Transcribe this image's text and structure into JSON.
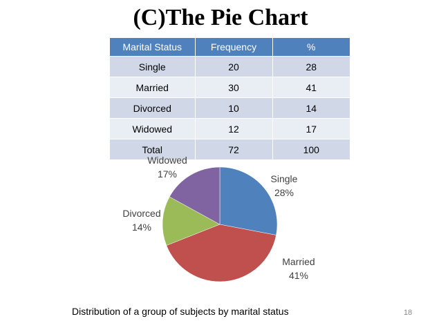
{
  "title": "(C)The Pie Chart",
  "table": {
    "headers": [
      "Marital Status",
      "Frequency",
      "%"
    ],
    "rows": [
      [
        "Single",
        "20",
        "28"
      ],
      [
        "Married",
        "30",
        "41"
      ],
      [
        "Divorced",
        "10",
        "14"
      ],
      [
        "Widowed",
        "12",
        "17"
      ],
      [
        "Total",
        "72",
        "100"
      ]
    ]
  },
  "chart_data": {
    "type": "pie",
    "title": "",
    "slices": [
      {
        "label": "Single",
        "value": 28,
        "percent_label": "28%",
        "color": "#4f81bd"
      },
      {
        "label": "Married",
        "value": 41,
        "percent_label": "41%",
        "color": "#c0504d"
      },
      {
        "label": "Divorced",
        "value": 14,
        "percent_label": "14%",
        "color": "#9bbb59"
      },
      {
        "label": "Widowed",
        "value": 17,
        "percent_label": "17%",
        "color": "#8064a2"
      }
    ],
    "start_angle": "12 o'clock",
    "direction": "clockwise",
    "legend": "none (labels outside slices)"
  },
  "caption": "Distribution of a group of subjects by marital status",
  "page_number": "18",
  "colors": {
    "header_bg": "#4f81bd",
    "row_odd": "#d0d8e8",
    "row_even": "#e9edf4"
  }
}
